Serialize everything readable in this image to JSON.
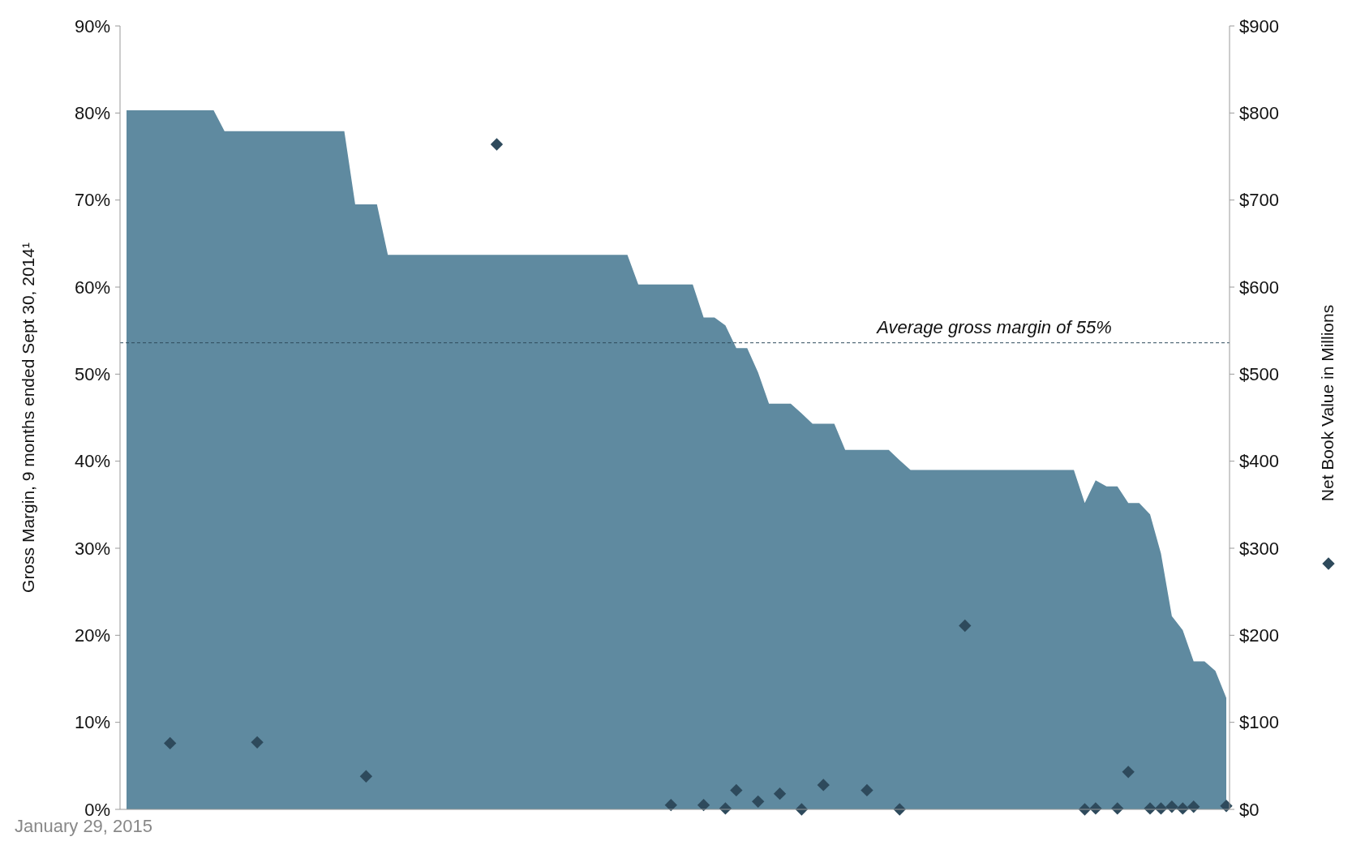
{
  "chart_data": {
    "type": "area",
    "ylabel": "Gross Margin, 9 months ended Sept 30, 2014¹",
    "y2label": "Net Book Value in Millions",
    "categories": [
      null,
      null,
      null,
      null,
      null,
      null,
      null,
      null,
      null,
      null,
      null,
      null,
      null,
      null,
      null,
      null,
      null,
      null,
      null,
      null,
      null,
      null,
      null,
      null,
      null,
      null,
      null,
      null,
      null,
      null,
      null,
      null,
      null,
      null,
      null,
      null,
      null,
      null,
      null,
      null,
      null,
      null,
      null,
      null,
      null,
      null,
      null,
      null,
      null,
      null,
      null,
      null,
      null,
      null,
      null,
      null,
      null,
      null,
      null,
      null,
      null,
      null,
      null,
      null,
      null,
      null,
      null,
      null,
      null,
      null,
      null,
      null,
      null,
      null,
      null,
      null,
      null,
      null,
      null,
      null,
      null,
      null,
      null,
      null,
      null,
      null,
      null,
      null,
      null,
      null,
      null,
      null,
      null,
      null,
      null,
      null,
      null,
      null,
      null,
      null,
      null,
      null
    ],
    "series": [
      {
        "color": "#5f8aa0",
        "values": [
          80.3,
          80.3,
          80.3,
          80.3,
          80.3,
          80.3,
          80.3,
          80.3,
          80.3,
          77.9,
          77.9,
          77.9,
          77.9,
          77.9,
          77.9,
          77.9,
          77.9,
          77.9,
          77.9,
          77.9,
          77.9,
          69.5,
          69.5,
          69.5,
          63.7,
          63.7,
          63.7,
          63.7,
          63.7,
          63.7,
          63.7,
          63.7,
          63.7,
          63.7,
          63.7,
          63.7,
          63.7,
          63.7,
          63.7,
          63.7,
          63.7,
          63.7,
          63.7,
          63.7,
          63.7,
          63.7,
          63.7,
          60.3,
          60.3,
          60.3,
          60.3,
          60.3,
          60.3,
          56.5,
          56.5,
          55.6,
          53,
          53,
          50.2,
          46.6,
          46.6,
          46.6,
          45.5,
          44.3,
          44.3,
          44.3,
          41.3,
          41.3,
          41.3,
          41.3,
          41.3,
          40.1,
          39,
          39,
          39,
          39,
          39,
          39,
          39,
          39,
          39,
          39,
          39,
          39,
          39,
          39,
          39,
          39,
          35.2,
          37.8,
          37.1,
          37.1,
          35.2,
          35.2,
          33.9,
          29.4,
          22.2,
          20.6,
          17,
          17,
          15.9,
          12.8
        ]
      },
      {
        "type": "scatter",
        "axis": "y2",
        "color": "#2e4a5c",
        "marker": "diamond",
        "values": [
          null,
          null,
          null,
          null,
          76,
          null,
          null,
          null,
          null,
          null,
          null,
          null,
          77,
          null,
          null,
          null,
          null,
          null,
          null,
          null,
          null,
          null,
          38,
          null,
          null,
          null,
          null,
          null,
          null,
          null,
          null,
          null,
          null,
          null,
          764,
          null,
          null,
          null,
          null,
          null,
          null,
          null,
          null,
          null,
          null,
          null,
          null,
          null,
          null,
          null,
          5,
          null,
          null,
          5,
          null,
          1,
          22,
          null,
          9,
          null,
          18,
          null,
          0,
          null,
          28,
          null,
          null,
          null,
          22,
          null,
          null,
          0,
          null,
          null,
          null,
          null,
          null,
          211,
          null,
          null,
          null,
          null,
          null,
          null,
          null,
          null,
          null,
          null,
          0,
          1,
          null,
          1,
          43,
          null,
          1,
          1,
          3,
          1,
          3,
          null,
          null,
          4
        ]
      }
    ],
    "ylim": [
      0,
      90
    ],
    "yticks": [
      {
        "value": 0,
        "label": "0%"
      },
      {
        "value": 10,
        "label": "10%"
      },
      {
        "value": 20,
        "label": "20%"
      },
      {
        "value": 30,
        "label": "30%"
      },
      {
        "value": 40,
        "label": "40%"
      },
      {
        "value": 50,
        "label": "50%"
      },
      {
        "value": 60,
        "label": "60%"
      },
      {
        "value": 70,
        "label": "70%"
      },
      {
        "value": 80,
        "label": "80%"
      },
      {
        "value": 90,
        "label": "90%"
      }
    ],
    "y2lim": [
      0,
      900
    ],
    "y2ticks": [
      {
        "value": 0,
        "label": "$0"
      },
      {
        "value": 100,
        "label": "$100"
      },
      {
        "value": 200,
        "label": "$200"
      },
      {
        "value": 300,
        "label": "$300"
      },
      {
        "value": 400,
        "label": "$400"
      },
      {
        "value": 500,
        "label": "$500"
      },
      {
        "value": 600,
        "label": "$600"
      },
      {
        "value": 700,
        "label": "$700"
      },
      {
        "value": 800,
        "label": "$800"
      },
      {
        "value": 900,
        "label": "$900"
      }
    ],
    "ref_lines": [
      {
        "axis": "y",
        "value": 53.6,
        "label": "Average gross margin of 55%",
        "color": "#2e4a5c",
        "line_style": "dashed"
      }
    ],
    "annotations": [
      "January 29, 2015"
    ],
    "grid": false,
    "tick_labels": "y"
  }
}
